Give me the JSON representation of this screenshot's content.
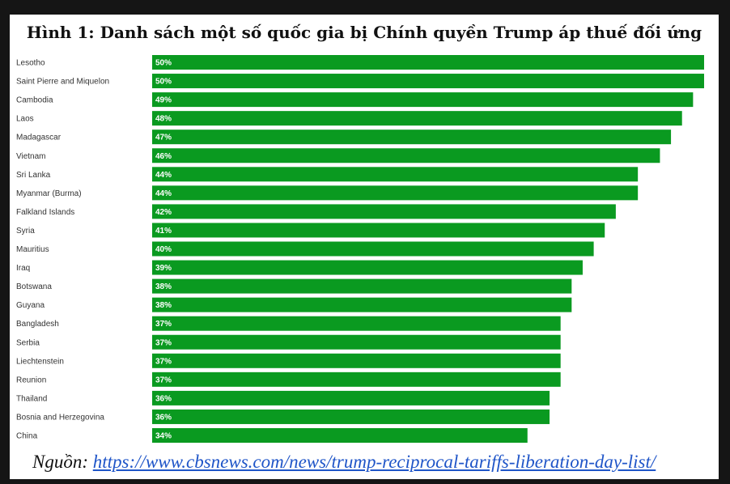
{
  "title": "Hình 1: Danh sách một số quốc gia bị Chính quyền Trump áp thuế đối ứng",
  "source": {
    "prefix": "Nguồn:",
    "url": "https://www.cbsnews.com/news/trump-reciprocal-tariffs-liberation-day-list/"
  },
  "chart_data": {
    "type": "bar",
    "orientation": "horizontal",
    "title": "Hình 1: Danh sách một số quốc gia bị Chính quyền Trump áp thuế đối ứng",
    "xlabel": "",
    "ylabel": "",
    "xlim": [
      0,
      50
    ],
    "grid": false,
    "bar_color": "#0a9a20",
    "label_color": "#ffffff",
    "categories": [
      "Lesotho",
      "Saint Pierre and Miquelon",
      "Cambodia",
      "Laos",
      "Madagascar",
      "Vietnam",
      "Sri Lanka",
      "Myanmar (Burma)",
      "Falkland Islands",
      "Syria",
      "Mauritius",
      "Iraq",
      "Botswana",
      "Guyana",
      "Bangladesh",
      "Serbia",
      "Liechtenstein",
      "Reunion",
      "Thailand",
      "Bosnia and Herzegovina",
      "China"
    ],
    "values": [
      50,
      50,
      49,
      48,
      47,
      46,
      44,
      44,
      42,
      41,
      40,
      39,
      38,
      38,
      37,
      37,
      37,
      37,
      36,
      36,
      34
    ],
    "labels": [
      "50%",
      "50%",
      "49%",
      "48%",
      "47%",
      "46%",
      "44%",
      "44%",
      "42%",
      "41%",
      "40%",
      "39%",
      "38%",
      "38%",
      "37%",
      "37%",
      "37%",
      "37%",
      "36%",
      "36%",
      "34%"
    ]
  }
}
